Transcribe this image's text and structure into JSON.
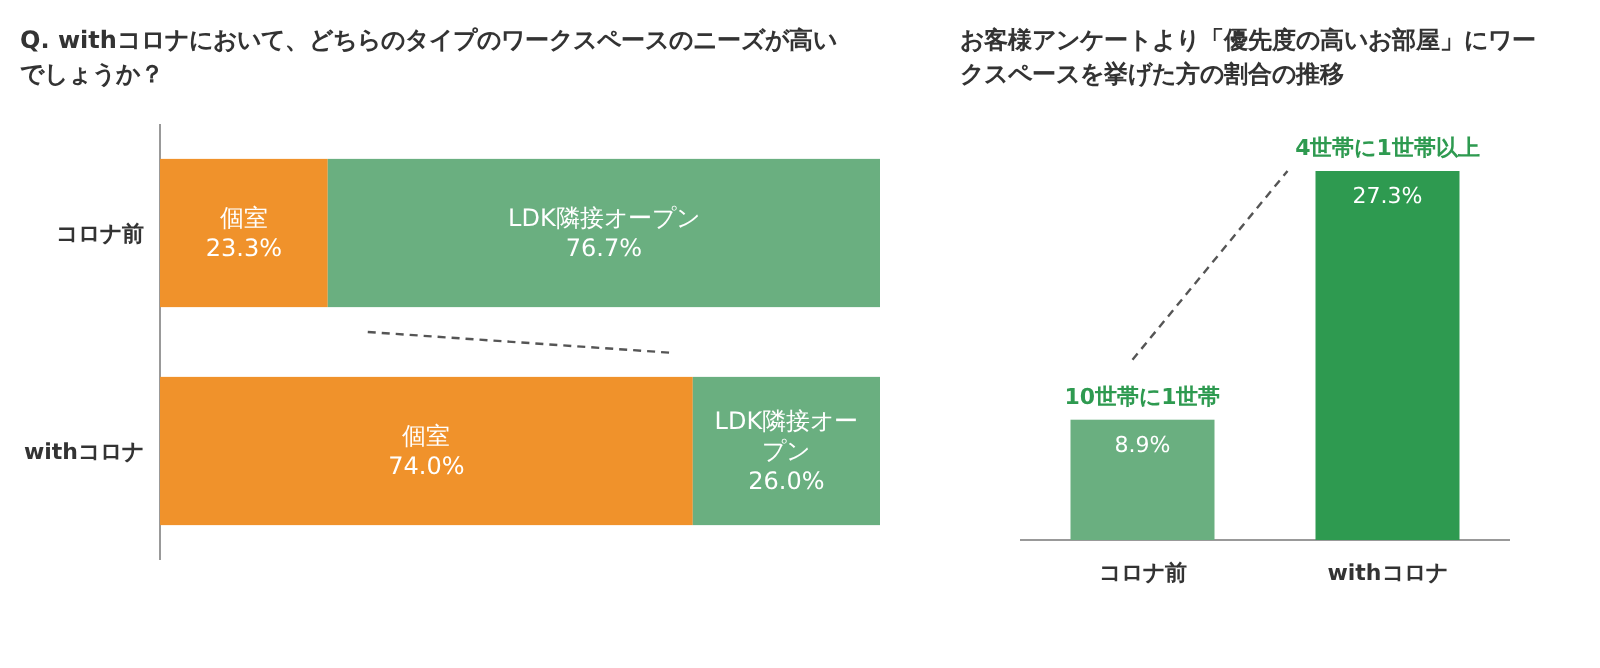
{
  "chart_data": [
    {
      "type": "bar",
      "orientation": "horizontal",
      "stacked": true,
      "title": "Q. withコロナにおいて、どちらのタイプのワークスペースのニーズが高いでしょうか？",
      "categories": [
        "コロナ前",
        "withコロナ"
      ],
      "xlim": [
        0,
        100
      ],
      "tick_labels": "y",
      "series": [
        {
          "name": "個室",
          "color": "#f0922b",
          "values": [
            23.3,
            74.0
          ],
          "value_labels": [
            "23.3%",
            "74.0%"
          ]
        },
        {
          "name": "LDK隣接オープン",
          "color": "#6aaf80",
          "values": [
            76.7,
            26.0
          ],
          "value_labels": [
            "76.7%",
            "26.0%"
          ]
        }
      ]
    },
    {
      "type": "bar",
      "title": "お客様アンケートより「優先度の高いお部屋」にワークスペースを挙げた方の割合の推移",
      "categories": [
        "コロナ前",
        "withコロナ"
      ],
      "values": [
        8.9,
        27.3
      ],
      "colors": [
        "#6aaf80",
        "#2e9a50"
      ],
      "value_labels": [
        "8.9%",
        "27.3%"
      ],
      "tick_labels": "x",
      "annotations": [
        {
          "text": "10世帯に1世帯",
          "x": "コロナ前",
          "y": 8.9
        },
        {
          "text": "4世帯に1世帯以上",
          "x": "withコロナ",
          "y": 27.3
        }
      ]
    }
  ]
}
